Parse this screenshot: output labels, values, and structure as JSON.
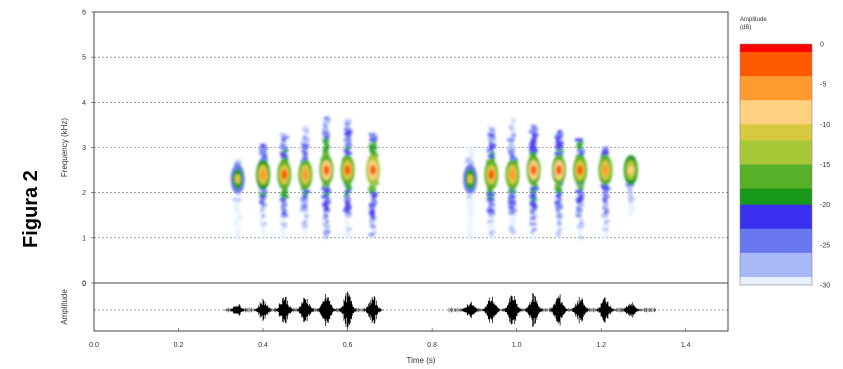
{
  "figure_label": "Figura 2",
  "colors": {
    "scale": [
      "#ff0000",
      "#ff5a00",
      "#ff9a30",
      "#ffd080",
      "#d8c840",
      "#a8c838",
      "#58b028",
      "#189818",
      "#3a30f0",
      "#6a78f0",
      "#a8b8f8",
      "#e6f0ff"
    ]
  },
  "chart_data": [
    {
      "type": "heatmap",
      "name": "spectrogram",
      "xlabel": "",
      "ylabel": "Frequency (kHz)",
      "xlim": [
        0,
        1.5
      ],
      "ylim": [
        0,
        6
      ],
      "y_ticks": [
        0,
        1,
        2,
        3,
        4,
        5,
        6
      ],
      "grid": "dashed horizontal at each kHz",
      "colorbar": {
        "title": "Amplitude (dB)",
        "range": [
          -30,
          0
        ],
        "ticks": [
          0,
          -5,
          -10,
          -15,
          -20,
          -25,
          -30
        ]
      },
      "pulses": [
        {
          "t": 0.34,
          "f_low": 1.0,
          "f_high": 2.8,
          "f_peak": 2.3,
          "level": -12
        },
        {
          "t": 0.4,
          "f_low": 1.0,
          "f_high": 3.1,
          "f_peak": 2.4,
          "level": -6
        },
        {
          "t": 0.45,
          "f_low": 1.0,
          "f_high": 3.3,
          "f_peak": 2.4,
          "level": -4
        },
        {
          "t": 0.5,
          "f_low": 1.0,
          "f_high": 3.5,
          "f_peak": 2.4,
          "level": -5
        },
        {
          "t": 0.55,
          "f_low": 1.0,
          "f_high": 3.7,
          "f_peak": 2.5,
          "level": -3
        },
        {
          "t": 0.6,
          "f_low": 1.0,
          "f_high": 3.7,
          "f_peak": 2.5,
          "level": -4
        },
        {
          "t": 0.66,
          "f_low": 1.0,
          "f_high": 3.3,
          "f_peak": 2.5,
          "level": -2
        },
        {
          "t": 0.89,
          "f_low": 1.0,
          "f_high": 3.0,
          "f_peak": 2.3,
          "level": -12
        },
        {
          "t": 0.94,
          "f_low": 1.0,
          "f_high": 3.5,
          "f_peak": 2.4,
          "level": -4
        },
        {
          "t": 0.99,
          "f_low": 1.0,
          "f_high": 3.7,
          "f_peak": 2.4,
          "level": -5
        },
        {
          "t": 1.04,
          "f_low": 1.0,
          "f_high": 3.5,
          "f_peak": 2.5,
          "level": -3
        },
        {
          "t": 1.1,
          "f_low": 1.0,
          "f_high": 3.4,
          "f_peak": 2.5,
          "level": -3
        },
        {
          "t": 1.15,
          "f_low": 1.0,
          "f_high": 3.2,
          "f_peak": 2.5,
          "level": -4
        },
        {
          "t": 1.21,
          "f_low": 1.0,
          "f_high": 3.0,
          "f_peak": 2.5,
          "level": -5
        },
        {
          "t": 1.27,
          "f_low": 1.5,
          "f_high": 2.8,
          "f_peak": 2.5,
          "level": -8
        }
      ]
    },
    {
      "type": "line",
      "name": "waveform",
      "xlabel": "Time (s)",
      "ylabel": "Amplitude",
      "xlim": [
        0,
        1.5
      ],
      "x_ticks": [
        "0.0",
        "0.2",
        "0.4",
        "0.6",
        "0.8",
        "1.0",
        "1.2",
        "1.4"
      ],
      "y_ticks": [
        0
      ],
      "bursts": [
        {
          "t": 0.34,
          "amp": 0.35
        },
        {
          "t": 0.4,
          "amp": 0.6
        },
        {
          "t": 0.45,
          "amp": 0.85
        },
        {
          "t": 0.5,
          "amp": 0.75
        },
        {
          "t": 0.55,
          "amp": 0.85
        },
        {
          "t": 0.6,
          "amp": 0.95
        },
        {
          "t": 0.66,
          "amp": 0.75
        },
        {
          "t": 0.89,
          "amp": 0.45
        },
        {
          "t": 0.94,
          "amp": 0.75
        },
        {
          "t": 0.99,
          "amp": 0.85
        },
        {
          "t": 1.04,
          "amp": 0.9
        },
        {
          "t": 1.1,
          "amp": 0.85
        },
        {
          "t": 1.15,
          "amp": 0.7
        },
        {
          "t": 1.21,
          "amp": 0.75
        },
        {
          "t": 1.27,
          "amp": 0.45
        }
      ]
    }
  ]
}
